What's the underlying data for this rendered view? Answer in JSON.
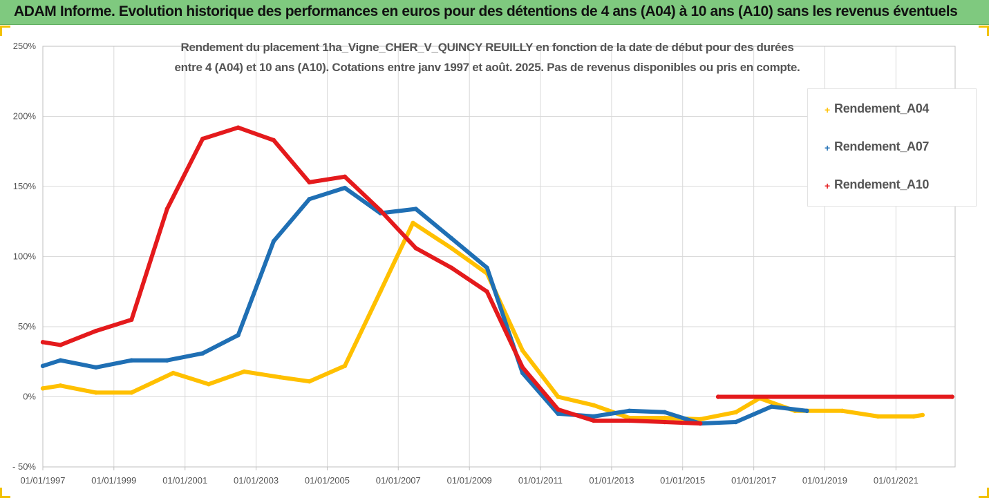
{
  "header": {
    "title": "ADAM Informe. Evolution historique des performances en euros pour des détentions de 4 ans (A04) à 10 ans (A10) sans les revenus éventuels"
  },
  "colors": {
    "header_bg": "#7fc97f",
    "corner_accent": "#f2c200",
    "A04": "#ffc000",
    "A07": "#1f6fb4",
    "A10": "#e41a1c"
  },
  "chart_data": {
    "type": "line",
    "title_line1": "Rendement du placement 1ha_Vigne_CHER_V_QUINCY REUILLY en fonction de la date de début pour des durées",
    "title_line2": "entre 4 (A04) et 10 ans (A10). Cotations entre janv 1997 et août. 2025. Pas de revenus disponibles ou pris en compte.",
    "xlabel": "",
    "ylabel": "",
    "x_tick_labels": [
      "01/01/1997",
      "01/01/1999",
      "01/01/2001",
      "01/01/2003",
      "01/01/2005",
      "01/01/2007",
      "01/01/2009",
      "01/01/2011",
      "01/01/2013",
      "01/01/2015",
      "01/01/2017",
      "01/01/2019",
      "01/01/2021"
    ],
    "xlim": [
      "1997-01-01",
      "2022-09-01"
    ],
    "y_tick_labels": [
      "250%",
      "200%",
      "150%",
      "100%",
      "50%",
      "0%",
      "- 50%"
    ],
    "ylim": [
      -50,
      250
    ],
    "y_unit": "%",
    "grid": "vertical and horizontal",
    "legend_position": "right",
    "series": [
      {
        "name": "Rendement_A04",
        "color": "#ffc000",
        "points": [
          [
            "1997-01-01",
            6
          ],
          [
            "1997-07-01",
            8
          ],
          [
            "1998-07-01",
            3
          ],
          [
            "1999-07-01",
            3
          ],
          [
            "2000-09-01",
            17
          ],
          [
            "2001-09-01",
            9
          ],
          [
            "2002-09-01",
            18
          ],
          [
            "2003-09-01",
            14
          ],
          [
            "2004-07-01",
            11
          ],
          [
            "2005-07-01",
            22
          ],
          [
            "2006-07-01",
            75
          ],
          [
            "2007-06-01",
            124
          ],
          [
            "2008-07-01",
            106
          ],
          [
            "2009-07-01",
            88
          ],
          [
            "2010-07-01",
            33
          ],
          [
            "2011-07-01",
            0
          ],
          [
            "2012-07-01",
            -6
          ],
          [
            "2013-07-01",
            -15
          ],
          [
            "2014-07-01",
            -15
          ],
          [
            "2015-07-01",
            -16
          ],
          [
            "2016-07-01",
            -11
          ],
          [
            "2017-03-01",
            -1
          ],
          [
            "2018-03-01",
            -10
          ],
          [
            "2019-07-01",
            -10
          ],
          [
            "2020-07-01",
            -14
          ],
          [
            "2021-07-01",
            -14
          ],
          [
            "2021-10-01",
            -13
          ]
        ]
      },
      {
        "name": "Rendement_A07",
        "color": "#1f6fb4",
        "points": [
          [
            "1997-01-01",
            22
          ],
          [
            "1997-07-01",
            26
          ],
          [
            "1998-07-01",
            21
          ],
          [
            "1999-07-01",
            26
          ],
          [
            "2000-07-01",
            26
          ],
          [
            "2001-07-01",
            31
          ],
          [
            "2002-07-01",
            44
          ],
          [
            "2003-07-01",
            111
          ],
          [
            "2004-07-01",
            141
          ],
          [
            "2005-07-01",
            149
          ],
          [
            "2006-07-01",
            131
          ],
          [
            "2007-07-01",
            134
          ],
          [
            "2008-07-01",
            113
          ],
          [
            "2009-07-01",
            92
          ],
          [
            "2010-07-01",
            17
          ],
          [
            "2011-07-01",
            -12
          ],
          [
            "2012-07-01",
            -14
          ],
          [
            "2013-07-01",
            -10
          ],
          [
            "2014-07-01",
            -11
          ],
          [
            "2015-07-01",
            -19
          ],
          [
            "2016-07-01",
            -18
          ],
          [
            "2017-07-01",
            -7
          ],
          [
            "2018-07-01",
            -10
          ]
        ]
      },
      {
        "name": "Rendement_A10",
        "color": "#e41a1c",
        "points": [
          [
            "1997-01-01",
            39
          ],
          [
            "1997-07-01",
            37
          ],
          [
            "1998-07-01",
            47
          ],
          [
            "1999-07-01",
            55
          ],
          [
            "2000-07-01",
            134
          ],
          [
            "2001-07-01",
            184
          ],
          [
            "2002-07-01",
            192
          ],
          [
            "2003-07-01",
            183
          ],
          [
            "2004-07-01",
            153
          ],
          [
            "2005-07-01",
            157
          ],
          [
            "2006-07-01",
            133
          ],
          [
            "2007-07-01",
            106
          ],
          [
            "2008-07-01",
            92
          ],
          [
            "2009-07-01",
            75
          ],
          [
            "2010-07-01",
            21
          ],
          [
            "2011-07-01",
            -9
          ],
          [
            "2012-07-01",
            -17
          ],
          [
            "2013-07-01",
            -17
          ],
          [
            "2014-07-01",
            -18
          ],
          [
            "2015-07-01",
            -19
          ]
        ]
      },
      {
        "name": "",
        "color": "#e41a1c",
        "points": [
          [
            "2016-01-01",
            0
          ],
          [
            "2022-08-01",
            0
          ]
        ]
      }
    ]
  }
}
